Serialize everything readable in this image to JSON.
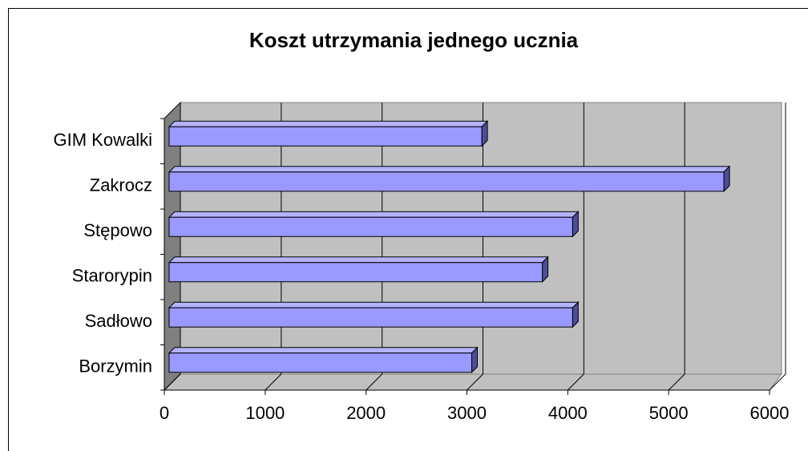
{
  "chart_data": {
    "type": "bar3d_horizontal",
    "title": "Koszt utrzymania jednego ucznia",
    "categories": [
      "Borzymin",
      "Sadłowo",
      "Starorypin",
      "Stępowo",
      "Zakrocz",
      "GIM Kowalki"
    ],
    "values": [
      3000,
      4000,
      3700,
      4000,
      5500,
      3100
    ],
    "color": "#9999ff",
    "xlim": [
      0,
      6000
    ],
    "xticks": [
      0,
      1000,
      2000,
      3000,
      4000,
      5000,
      6000
    ],
    "grid": true
  }
}
